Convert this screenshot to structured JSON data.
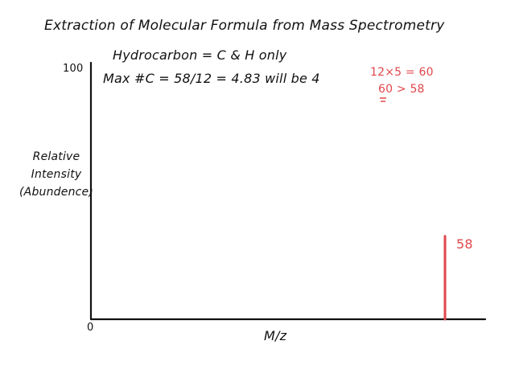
{
  "title": "Extraction of Molecular Formula from Mass Spectrometry",
  "notes": {
    "line1": "Hydrocarbon = C & H only",
    "line2": "Max #C = 58/12 = 4.83 will be 4"
  },
  "calc": {
    "line1": "12×5 = 60",
    "line2": "60 > 58"
  },
  "axes": {
    "y_label_lines": [
      "Relative",
      "Intensity",
      "(Abundence)"
    ],
    "x_label": "M/z",
    "y_max_label": "100",
    "origin_label": "0"
  },
  "colors": {
    "ink": "#111111",
    "accent": "#e0474c"
  },
  "chart_data": {
    "type": "bar",
    "title": "Extraction of Molecular Formula from Mass Spectrometry",
    "xlabel": "M/z",
    "ylabel": "Relative Intensity (Abundence)",
    "ylim": [
      0,
      100
    ],
    "peaks": [
      {
        "mz": 58,
        "intensity": 33,
        "label": "58"
      }
    ]
  }
}
